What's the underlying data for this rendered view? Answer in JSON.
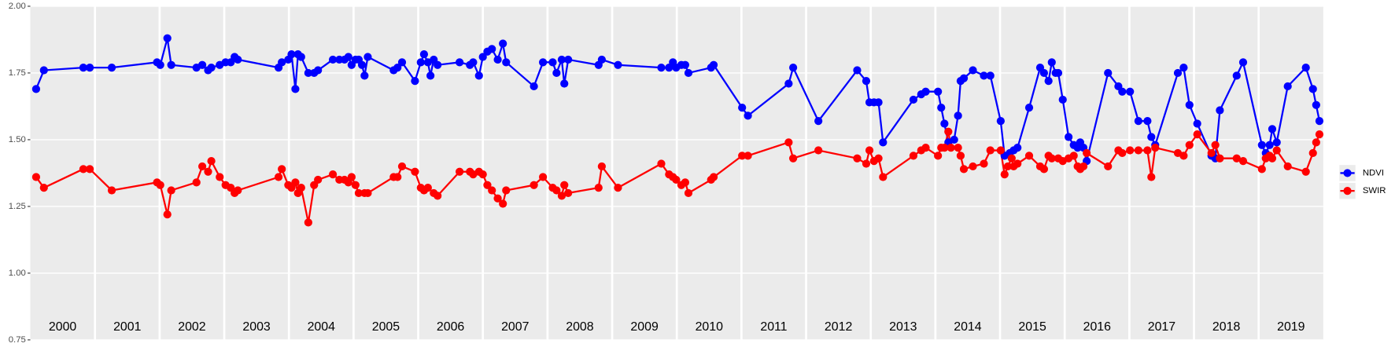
{
  "chart_data": {
    "type": "line",
    "xlim": [
      2000,
      2020
    ],
    "xticks": [
      2001,
      2002,
      2003,
      2004,
      2005,
      2006,
      2007,
      2008,
      2009,
      2010,
      2011,
      2012,
      2013,
      2014,
      2015,
      2016,
      2017,
      2018,
      2019
    ],
    "year_labels": [
      "2000",
      "2001",
      "2002",
      "2003",
      "2004",
      "2005",
      "2006",
      "2007",
      "2008",
      "2009",
      "2010",
      "2011",
      "2012",
      "2013",
      "2014",
      "2015",
      "2016",
      "2017",
      "2018",
      "2019"
    ],
    "ylim": [
      0.75,
      2.0
    ],
    "yticks": [
      {
        "value": 0.75,
        "label": "0.75"
      },
      {
        "value": 1.0,
        "label": "1.00"
      },
      {
        "value": 1.25,
        "label": "1.25"
      },
      {
        "value": 1.5,
        "label": "1.50"
      },
      {
        "value": 1.75,
        "label": "1.75"
      },
      {
        "value": 2.0,
        "label": "2.00"
      }
    ],
    "grid": true,
    "legend": "right",
    "series": [
      {
        "name": "NDVI",
        "color": "#0000ff",
        "x": [
          2000.09,
          2000.21,
          2000.82,
          2000.92,
          2001.26,
          2001.96,
          2002.01,
          2002.12,
          2002.18,
          2002.57,
          2002.66,
          2002.75,
          2002.8,
          2002.93,
          2003.02,
          2003.1,
          2003.16,
          2003.21,
          2003.84,
          2003.89,
          2003.99,
          2004.04,
          2004.1,
          2004.14,
          2004.19,
          2004.3,
          2004.39,
          2004.45,
          2004.68,
          2004.78,
          2004.86,
          2004.92,
          2004.97,
          2005.03,
          2005.08,
          2005.13,
          2005.17,
          2005.22,
          2005.62,
          2005.68,
          2005.75,
          2005.95,
          2006.04,
          2006.09,
          2006.15,
          2006.19,
          2006.24,
          2006.3,
          2006.64,
          2006.8,
          2006.85,
          2006.94,
          2007.0,
          2007.07,
          2007.14,
          2007.23,
          2007.31,
          2007.36,
          2007.79,
          2007.93,
          2008.08,
          2008.14,
          2008.22,
          2008.26,
          2008.32,
          2008.79,
          2008.84,
          2009.09,
          2009.76,
          2009.88,
          2009.94,
          2009.99,
          2010.07,
          2010.13,
          2010.18,
          2010.53,
          2010.57,
          2011.01,
          2011.1,
          2011.73,
          2011.8,
          2012.19,
          2012.79,
          2012.93,
          2012.98,
          2013.05,
          2013.12,
          2013.19,
          2013.66,
          2013.78,
          2013.85,
          2014.04,
          2014.09,
          2014.14,
          2014.2,
          2014.29,
          2014.35,
          2014.39,
          2014.44,
          2014.58,
          2014.75,
          2014.85,
          2015.01,
          2015.07,
          2015.15,
          2015.21,
          2015.27,
          2015.45,
          2015.62,
          2015.68,
          2015.75,
          2015.8,
          2015.86,
          2015.9,
          2015.97,
          2016.06,
          2016.14,
          2016.2,
          2016.24,
          2016.29,
          2016.34,
          2016.67,
          2016.83,
          2016.89,
          2017.01,
          2017.14,
          2017.28,
          2017.34,
          2017.4,
          2017.75,
          2017.84,
          2017.93,
          2018.05,
          2018.27,
          2018.33,
          2018.4,
          2018.66,
          2018.76,
          2019.05,
          2019.11,
          2019.17,
          2019.21,
          2019.28,
          2019.45,
          2019.73,
          2019.84,
          2019.89,
          2019.94
        ],
        "values": [
          1.69,
          1.76,
          1.77,
          1.77,
          1.77,
          1.79,
          1.78,
          1.88,
          1.78,
          1.77,
          1.78,
          1.76,
          1.77,
          1.78,
          1.79,
          1.79,
          1.81,
          1.8,
          1.77,
          1.79,
          1.8,
          1.82,
          1.69,
          1.82,
          1.81,
          1.75,
          1.75,
          1.76,
          1.8,
          1.8,
          1.8,
          1.81,
          1.78,
          1.8,
          1.8,
          1.78,
          1.74,
          1.81,
          1.76,
          1.77,
          1.79,
          1.72,
          1.79,
          1.82,
          1.79,
          1.74,
          1.8,
          1.78,
          1.79,
          1.78,
          1.79,
          1.74,
          1.81,
          1.83,
          1.84,
          1.8,
          1.86,
          1.79,
          1.7,
          1.79,
          1.79,
          1.75,
          1.8,
          1.71,
          1.8,
          1.78,
          1.8,
          1.78,
          1.77,
          1.77,
          1.79,
          1.77,
          1.78,
          1.78,
          1.75,
          1.77,
          1.78,
          1.62,
          1.59,
          1.71,
          1.77,
          1.57,
          1.76,
          1.72,
          1.64,
          1.64,
          1.64,
          1.49,
          1.65,
          1.67,
          1.68,
          1.68,
          1.62,
          1.56,
          1.49,
          1.5,
          1.59,
          1.72,
          1.73,
          1.76,
          1.74,
          1.74,
          1.57,
          1.44,
          1.45,
          1.46,
          1.47,
          1.62,
          1.77,
          1.75,
          1.72,
          1.79,
          1.75,
          1.75,
          1.65,
          1.51,
          1.48,
          1.47,
          1.49,
          1.47,
          1.42,
          1.75,
          1.7,
          1.68,
          1.68,
          1.57,
          1.57,
          1.51,
          1.48,
          1.75,
          1.77,
          1.63,
          1.56,
          1.44,
          1.43,
          1.61,
          1.74,
          1.79,
          1.48,
          1.45,
          1.48,
          1.54,
          1.49,
          1.7,
          1.77,
          1.69,
          1.63,
          1.57
        ]
      },
      {
        "name": "SWIR",
        "color": "#ff0000",
        "x": [
          2000.09,
          2000.21,
          2000.82,
          2000.92,
          2001.26,
          2001.96,
          2002.01,
          2002.12,
          2002.18,
          2002.57,
          2002.66,
          2002.75,
          2002.8,
          2002.93,
          2003.02,
          2003.1,
          2003.16,
          2003.21,
          2003.84,
          2003.89,
          2003.99,
          2004.04,
          2004.1,
          2004.14,
          2004.19,
          2004.3,
          2004.39,
          2004.45,
          2004.68,
          2004.78,
          2004.86,
          2004.92,
          2004.97,
          2005.03,
          2005.08,
          2005.17,
          2005.22,
          2005.62,
          2005.68,
          2005.75,
          2005.95,
          2006.04,
          2006.09,
          2006.15,
          2006.24,
          2006.3,
          2006.64,
          2006.8,
          2006.85,
          2006.94,
          2007.0,
          2007.07,
          2007.14,
          2007.23,
          2007.31,
          2007.36,
          2007.79,
          2007.93,
          2008.08,
          2008.14,
          2008.22,
          2008.26,
          2008.32,
          2008.79,
          2008.84,
          2009.09,
          2009.76,
          2009.88,
          2009.94,
          2009.99,
          2010.07,
          2010.13,
          2010.18,
          2010.53,
          2010.57,
          2011.01,
          2011.1,
          2011.73,
          2011.8,
          2012.19,
          2012.79,
          2012.93,
          2012.98,
          2013.05,
          2013.12,
          2013.19,
          2013.66,
          2013.78,
          2013.85,
          2014.04,
          2014.09,
          2014.14,
          2014.2,
          2014.24,
          2014.35,
          2014.39,
          2014.44,
          2014.58,
          2014.75,
          2014.85,
          2015.01,
          2015.07,
          2015.12,
          2015.18,
          2015.21,
          2015.27,
          2015.45,
          2015.62,
          2015.68,
          2015.75,
          2015.8,
          2015.9,
          2015.97,
          2016.06,
          2016.14,
          2016.2,
          2016.24,
          2016.29,
          2016.34,
          2016.67,
          2016.83,
          2016.89,
          2017.01,
          2017.14,
          2017.28,
          2017.34,
          2017.4,
          2017.75,
          2017.84,
          2017.93,
          2018.05,
          2018.27,
          2018.33,
          2018.4,
          2018.66,
          2018.76,
          2019.05,
          2019.11,
          2019.17,
          2019.21,
          2019.28,
          2019.45,
          2019.73,
          2019.84,
          2019.89,
          2019.94
        ],
        "values": [
          1.36,
          1.32,
          1.39,
          1.39,
          1.31,
          1.34,
          1.33,
          1.22,
          1.31,
          1.34,
          1.4,
          1.38,
          1.42,
          1.36,
          1.33,
          1.32,
          1.3,
          1.31,
          1.36,
          1.39,
          1.33,
          1.32,
          1.34,
          1.3,
          1.32,
          1.19,
          1.33,
          1.35,
          1.37,
          1.35,
          1.35,
          1.34,
          1.36,
          1.33,
          1.3,
          1.3,
          1.3,
          1.36,
          1.36,
          1.4,
          1.38,
          1.32,
          1.31,
          1.32,
          1.3,
          1.29,
          1.38,
          1.38,
          1.37,
          1.38,
          1.37,
          1.33,
          1.31,
          1.28,
          1.26,
          1.31,
          1.33,
          1.36,
          1.32,
          1.31,
          1.29,
          1.33,
          1.3,
          1.32,
          1.4,
          1.32,
          1.41,
          1.37,
          1.36,
          1.35,
          1.33,
          1.34,
          1.3,
          1.35,
          1.36,
          1.44,
          1.44,
          1.49,
          1.43,
          1.46,
          1.43,
          1.41,
          1.46,
          1.42,
          1.43,
          1.36,
          1.44,
          1.46,
          1.47,
          1.44,
          1.47,
          1.47,
          1.53,
          1.47,
          1.47,
          1.44,
          1.39,
          1.4,
          1.41,
          1.46,
          1.46,
          1.37,
          1.4,
          1.43,
          1.4,
          1.41,
          1.44,
          1.4,
          1.39,
          1.44,
          1.43,
          1.43,
          1.42,
          1.43,
          1.44,
          1.4,
          1.39,
          1.4,
          1.45,
          1.4,
          1.46,
          1.45,
          1.46,
          1.46,
          1.46,
          1.36,
          1.47,
          1.45,
          1.44,
          1.48,
          1.52,
          1.45,
          1.48,
          1.43,
          1.43,
          1.42,
          1.39,
          1.43,
          1.44,
          1.43,
          1.46,
          1.4,
          1.38,
          1.45,
          1.49,
          1.52
        ]
      }
    ]
  }
}
